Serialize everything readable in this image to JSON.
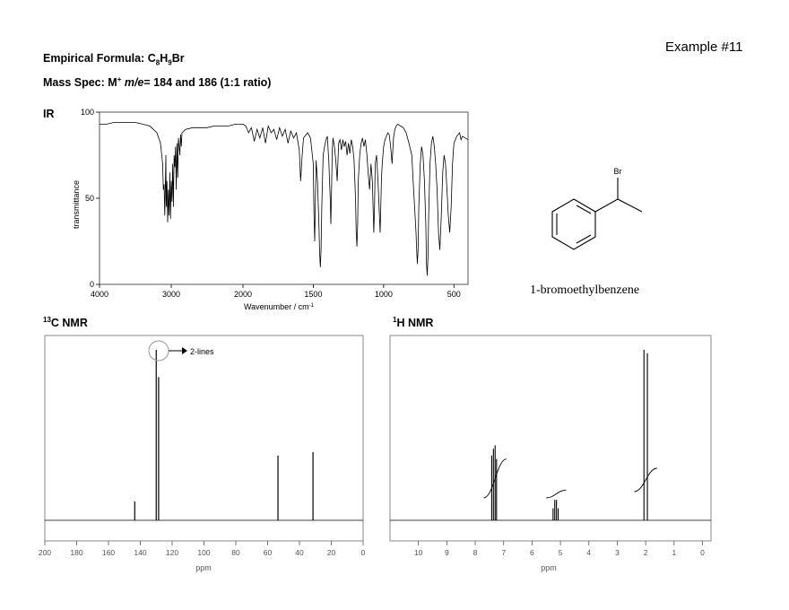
{
  "header": {
    "example_label": "Example #11",
    "formula_label": "Empirical Formula:",
    "formula_parts": [
      "C",
      "8",
      "H",
      "9",
      "Br"
    ],
    "mass_spec_label": "Mass Spec:",
    "mass_spec_ion": "M",
    "mass_spec_charge": "+",
    "mass_spec_me": "m/e",
    "mass_spec_values": "= 184 and 186 (1:1 ratio)"
  },
  "structure": {
    "name": "1-bromoethylbenzene",
    "atom_label": "Br"
  },
  "chart_data": [
    {
      "id": "ir",
      "type": "line",
      "title": "IR",
      "xlabel": "Wavenumber / cm",
      "xlabel_sup": "-1",
      "ylabel": "transmittance",
      "xlim": [
        4000,
        400
      ],
      "ylim": [
        0,
        100
      ],
      "xticks": [
        4000,
        3000,
        2000,
        1500,
        1000,
        500
      ],
      "yticks": [
        0,
        50,
        100
      ],
      "line_color": "#000000",
      "series": [
        {
          "x": [
            4000,
            3900,
            3800,
            3700,
            3600,
            3500,
            3400,
            3300,
            3200,
            3150,
            3120,
            3110,
            3100,
            3090,
            3080,
            3075,
            3070,
            3060,
            3050,
            3040,
            3030,
            3020,
            3010,
            3000,
            2990,
            2980,
            2970,
            2960,
            2950,
            2940,
            2930,
            2920,
            2910,
            2900,
            2880,
            2870,
            2860,
            2850,
            2800,
            2700,
            2600,
            2500,
            2400,
            2300,
            2200,
            2100,
            2000,
            1980,
            1960,
            1940,
            1920,
            1900,
            1880,
            1860,
            1840,
            1820,
            1800,
            1780,
            1760,
            1740,
            1720,
            1700,
            1680,
            1660,
            1640,
            1620,
            1600,
            1590,
            1580,
            1570,
            1560,
            1540,
            1520,
            1500,
            1495,
            1490,
            1485,
            1480,
            1470,
            1460,
            1455,
            1450,
            1445,
            1440,
            1430,
            1420,
            1410,
            1400,
            1390,
            1380,
            1375,
            1370,
            1365,
            1360,
            1350,
            1340,
            1330,
            1320,
            1310,
            1300,
            1290,
            1280,
            1270,
            1260,
            1250,
            1240,
            1230,
            1220,
            1210,
            1200,
            1195,
            1190,
            1185,
            1180,
            1170,
            1160,
            1150,
            1140,
            1130,
            1120,
            1110,
            1100,
            1090,
            1080,
            1075,
            1070,
            1065,
            1060,
            1050,
            1040,
            1030,
            1025,
            1020,
            1015,
            1010,
            1000,
            990,
            980,
            970,
            960,
            950,
            940,
            930,
            920,
            910,
            900,
            880,
            860,
            840,
            820,
            800,
            790,
            780,
            770,
            765,
            760,
            755,
            750,
            740,
            730,
            720,
            710,
            700,
            695,
            690,
            685,
            680,
            670,
            660,
            650,
            640,
            630,
            620,
            610,
            600,
            590,
            580,
            570,
            560,
            550,
            540,
            530,
            520,
            510,
            500,
            480,
            460,
            450,
            440,
            420,
            400
          ],
          "y": [
            93,
            93,
            94,
            94,
            94,
            94,
            93,
            92,
            88,
            82,
            70,
            55,
            58,
            40,
            63,
            75,
            45,
            60,
            36,
            55,
            40,
            65,
            38,
            60,
            48,
            70,
            45,
            75,
            68,
            80,
            55,
            82,
            62,
            85,
            75,
            87,
            80,
            88,
            90,
            91,
            91,
            91,
            92,
            92,
            92,
            93,
            93,
            92,
            88,
            91,
            83,
            90,
            85,
            91,
            82,
            92,
            88,
            90,
            84,
            91,
            86,
            90,
            82,
            89,
            85,
            88,
            78,
            60,
            74,
            85,
            86,
            88,
            85,
            70,
            40,
            25,
            50,
            72,
            60,
            35,
            18,
            10,
            20,
            45,
            75,
            80,
            84,
            86,
            72,
            50,
            35,
            55,
            78,
            85,
            80,
            72,
            60,
            82,
            84,
            78,
            84,
            80,
            83,
            75,
            82,
            76,
            84,
            80,
            72,
            50,
            30,
            22,
            35,
            60,
            75,
            82,
            85,
            80,
            84,
            76,
            65,
            55,
            70,
            60,
            45,
            30,
            45,
            70,
            75,
            60,
            40,
            30,
            45,
            62,
            70,
            80,
            84,
            86,
            88,
            87,
            80,
            70,
            85,
            90,
            92,
            93,
            92,
            91,
            88,
            82,
            75,
            60,
            45,
            30,
            20,
            12,
            20,
            45,
            70,
            80,
            75,
            60,
            35,
            12,
            5,
            15,
            40,
            70,
            82,
            86,
            80,
            70,
            55,
            30,
            20,
            40,
            65,
            75,
            70,
            55,
            40,
            30,
            45,
            70,
            82,
            86,
            88,
            84,
            86,
            85,
            84
          ]
        }
      ]
    },
    {
      "id": "c13",
      "type": "line",
      "title": "13C NMR",
      "title_sup": "13",
      "title_main": "C NMR",
      "xlabel": "ppm",
      "xlim": [
        200,
        0
      ],
      "xticks": [
        200,
        180,
        160,
        140,
        120,
        100,
        80,
        60,
        40,
        20,
        0
      ],
      "ylim": [
        0,
        100
      ],
      "annotation": "2-lines",
      "line_color": "#000000",
      "peaks": [
        {
          "ppm": 143.5,
          "height": 11
        },
        {
          "ppm": 130.0,
          "height": 100
        },
        {
          "ppm": 128.5,
          "height": 84
        },
        {
          "ppm": 53.5,
          "height": 38
        },
        {
          "ppm": 31.5,
          "height": 40
        }
      ]
    },
    {
      "id": "h1",
      "type": "line",
      "title": "1H NMR",
      "title_sup": "1",
      "title_main": "H NMR",
      "xlabel": "ppm",
      "xlim": [
        11,
        -0.3
      ],
      "xticks": [
        10,
        9,
        8,
        7,
        6,
        5,
        4,
        3,
        2,
        1,
        0
      ],
      "ylim": [
        0,
        100
      ],
      "line_color": "#000000",
      "peaks": [
        {
          "ppm": 7.42,
          "height": 38
        },
        {
          "ppm": 7.36,
          "height": 42
        },
        {
          "ppm": 7.3,
          "height": 44
        },
        {
          "ppm": 7.25,
          "height": 36
        },
        {
          "ppm": 5.26,
          "height": 7
        },
        {
          "ppm": 5.2,
          "height": 12
        },
        {
          "ppm": 5.14,
          "height": 12
        },
        {
          "ppm": 5.08,
          "height": 7
        },
        {
          "ppm": 2.06,
          "height": 100
        },
        {
          "ppm": 1.94,
          "height": 98
        }
      ],
      "integrals": [
        {
          "from": 7.7,
          "to": 6.9,
          "rise": 5
        },
        {
          "from": 5.5,
          "to": 4.8,
          "rise": 1
        },
        {
          "from": 2.4,
          "to": 1.6,
          "rise": 3
        }
      ]
    }
  ]
}
